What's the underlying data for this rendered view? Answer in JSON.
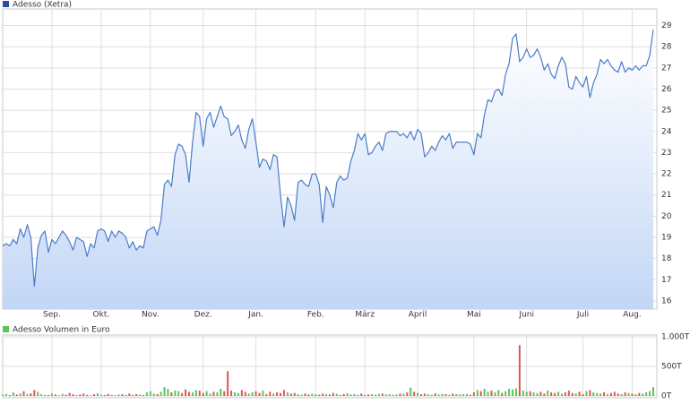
{
  "chart_data": [
    {
      "type": "area",
      "title": "Adesso (Xetra)",
      "color": "#4a7cc9",
      "fill": "#c2d6f6",
      "legend_color": "#2a4f9e",
      "grid": true,
      "ylim": [
        15.7,
        29.7
      ],
      "yticks": [
        16,
        17,
        18,
        19,
        20,
        21,
        22,
        23,
        24,
        25,
        26,
        27,
        28,
        29
      ],
      "categories": [
        null,
        null,
        null,
        null,
        null,
        null,
        null,
        null,
        null,
        null,
        null,
        null,
        null,
        null,
        "Sep.",
        null,
        null,
        null,
        null,
        null,
        null,
        null,
        null,
        null,
        null,
        null,
        null,
        null,
        "Okt.",
        null,
        null,
        null,
        null,
        null,
        null,
        null,
        null,
        null,
        null,
        null,
        null,
        null,
        "Nov.",
        null,
        null,
        null,
        null,
        null,
        null,
        null,
        null,
        null,
        null,
        null,
        null,
        null,
        null,
        "Dez.",
        null,
        null,
        null,
        null,
        null,
        null,
        null,
        null,
        null,
        null,
        null,
        null,
        null,
        null,
        "Jan.",
        null,
        null,
        null,
        null,
        null,
        null,
        null,
        null,
        null,
        null,
        null,
        null,
        null,
        null,
        null,
        null,
        "Feb.",
        null,
        null,
        null,
        null,
        null,
        null,
        null,
        null,
        null,
        null,
        null,
        null,
        null,
        "März",
        null,
        null,
        null,
        null,
        null,
        null,
        null,
        null,
        null,
        null,
        null,
        null,
        null,
        null,
        "April",
        null,
        null,
        null,
        null,
        null,
        null,
        null,
        null,
        null,
        null,
        null,
        null,
        null,
        null,
        null,
        "Mai",
        null,
        null,
        null,
        null,
        null,
        null,
        null,
        null,
        null,
        null,
        null,
        null,
        null,
        null,
        "Juni",
        null,
        null,
        null,
        null,
        null,
        null,
        null,
        null,
        null,
        null,
        null,
        null,
        null,
        null,
        null,
        "Juli",
        null,
        null,
        null,
        null,
        null,
        null,
        null,
        null,
        null,
        null,
        null,
        null,
        null,
        "Aug.",
        null,
        null,
        null,
        null,
        null,
        null
      ],
      "values": [
        18.6,
        18.7,
        18.6,
        18.9,
        18.7,
        19.4,
        19.0,
        19.6,
        19.0,
        16.7,
        18.5,
        19.1,
        19.3,
        18.3,
        18.9,
        18.7,
        19.0,
        19.3,
        19.1,
        18.8,
        18.4,
        19.0,
        18.9,
        18.8,
        18.1,
        18.7,
        18.5,
        19.3,
        19.4,
        19.3,
        18.8,
        19.3,
        19.0,
        19.3,
        19.2,
        19.0,
        18.5,
        18.8,
        18.4,
        18.6,
        18.5,
        19.3,
        19.4,
        19.5,
        19.1,
        19.8,
        21.5,
        21.7,
        21.4,
        22.9,
        23.4,
        23.3,
        22.9,
        21.6,
        23.5,
        24.9,
        24.7,
        23.3,
        24.6,
        24.9,
        24.2,
        24.7,
        25.2,
        24.7,
        24.6,
        23.8,
        24.0,
        24.3,
        23.6,
        23.2,
        24.1,
        24.6,
        23.5,
        22.3,
        22.7,
        22.6,
        22.2,
        22.9,
        22.8,
        21.0,
        19.5,
        20.9,
        20.5,
        19.8,
        21.6,
        21.7,
        21.5,
        21.4,
        22.0,
        22.0,
        21.5,
        19.7,
        21.4,
        21.0,
        20.4,
        21.6,
        21.9,
        21.7,
        21.8,
        22.6,
        23.1,
        23.9,
        23.6,
        23.9,
        22.9,
        23.0,
        23.3,
        23.5,
        23.1,
        23.9,
        24.0,
        24.0,
        24.0,
        23.8,
        23.9,
        23.7,
        24.0,
        23.6,
        24.1,
        23.9,
        22.8,
        23.0,
        23.3,
        23.1,
        23.5,
        23.8,
        23.6,
        23.9,
        23.2,
        23.5,
        23.5,
        23.5,
        23.5,
        23.4,
        22.9,
        23.9,
        23.7,
        24.8,
        25.5,
        25.4,
        25.9,
        26.0,
        25.7,
        26.7,
        27.2,
        28.4,
        28.6,
        27.3,
        27.5,
        27.9,
        27.5,
        27.6,
        27.9,
        27.5,
        26.9,
        27.2,
        26.7,
        26.5,
        27.1,
        27.5,
        27.2,
        26.1,
        26.0,
        26.6,
        26.3,
        26.1,
        26.6,
        25.6,
        26.3,
        26.7,
        27.4,
        27.2,
        27.4,
        27.1,
        26.9,
        26.8,
        27.3,
        26.8,
        27.0,
        26.9,
        27.1,
        26.9,
        27.1,
        27.1,
        27.6,
        28.8
      ]
    },
    {
      "type": "bar",
      "title": "Adesso Volumen in Euro",
      "legend_color": "#5cc45c",
      "up_color": "#5cc45c",
      "down_color": "#e05555",
      "grid": true,
      "ylim": [
        0,
        1000
      ],
      "yticks": [
        {
          "value": 0,
          "label": "0T"
        },
        {
          "value": 500,
          "label": "500T"
        },
        {
          "value": 1000,
          "label": "1.000T"
        }
      ],
      "values": [
        20,
        35,
        15,
        60,
        25,
        40,
        80,
        30,
        45,
        100,
        70,
        30,
        20,
        15,
        40,
        25,
        10,
        35,
        20,
        50,
        30,
        15,
        25,
        40,
        20,
        10,
        30,
        45,
        20,
        15,
        35,
        20,
        10,
        25,
        30,
        15,
        40,
        20,
        30,
        25,
        15,
        60,
        80,
        40,
        30,
        70,
        150,
        120,
        60,
        90,
        80,
        50,
        110,
        70,
        60,
        100,
        90,
        50,
        80,
        40,
        70,
        60,
        120,
        80,
        420,
        90,
        60,
        50,
        100,
        70,
        40,
        60,
        80,
        50,
        90,
        30,
        70,
        40,
        60,
        50,
        100,
        60,
        40,
        50,
        30,
        20,
        40,
        25,
        35,
        30,
        20,
        40,
        30,
        25,
        50,
        35,
        20,
        30,
        45,
        25,
        30,
        20,
        40,
        15,
        25,
        30,
        20,
        35,
        40,
        25,
        30,
        20,
        25,
        40,
        35,
        60,
        140,
        70,
        50,
        30,
        40,
        30,
        20,
        45,
        25,
        35,
        30,
        20,
        40,
        30,
        25,
        30,
        35,
        20,
        60,
        100,
        80,
        120,
        70,
        90,
        60,
        100,
        50,
        80,
        120,
        110,
        130,
        860,
        90,
        70,
        80,
        60,
        50,
        70,
        40,
        90,
        60,
        50,
        70,
        40,
        60,
        90,
        50,
        40,
        70,
        30,
        80,
        100,
        60,
        50,
        40,
        60,
        30,
        50,
        70,
        40,
        30,
        60,
        50,
        40,
        30,
        50,
        40,
        60,
        80,
        150
      ]
    }
  ]
}
